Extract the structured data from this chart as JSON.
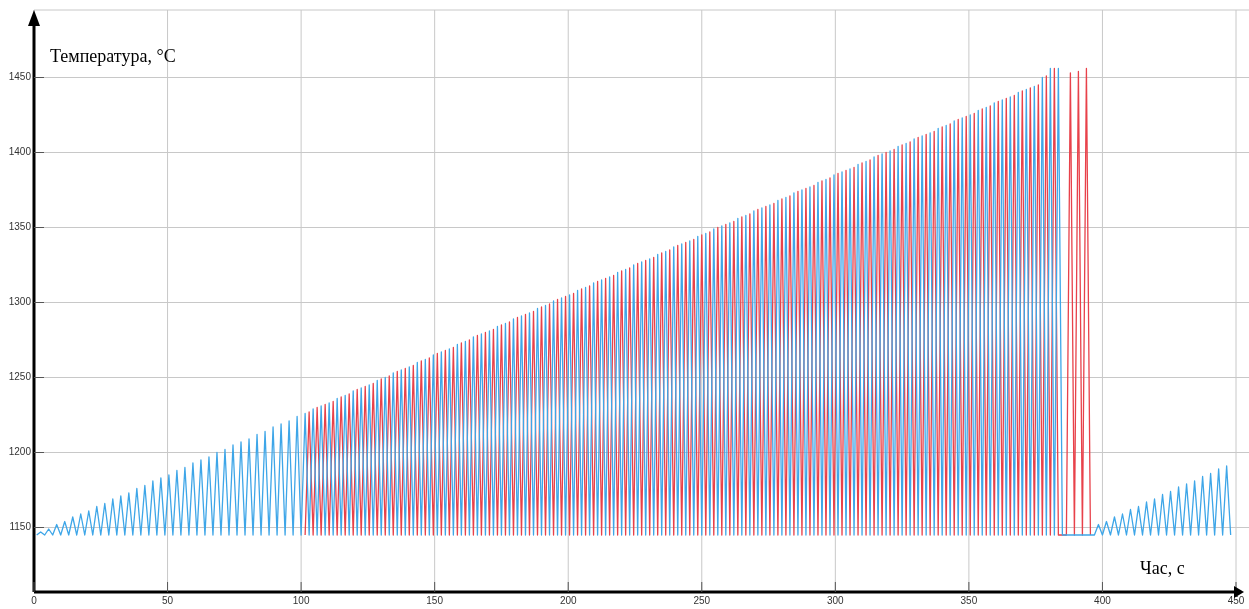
{
  "chart_data": {
    "type": "line",
    "xlabel": "Час, с",
    "ylabel": "Температура, °C",
    "xlim": [
      0,
      450
    ],
    "ylim": [
      1107,
      1495
    ],
    "xticks": [
      0,
      50,
      100,
      150,
      200,
      250,
      300,
      350,
      400,
      450
    ],
    "yticks": [
      1150,
      1200,
      1250,
      1300,
      1350,
      1400,
      1450
    ],
    "grid": true,
    "marker": "none",
    "line_style": "solid",
    "x": [
      1,
      2.5,
      4,
      5.5,
      7,
      8.5,
      10,
      11.5,
      13,
      14.5,
      16,
      17.5,
      19,
      20.5,
      22,
      23.5,
      25,
      26.5,
      28,
      29.5,
      31,
      32.5,
      34,
      35.5,
      37,
      38.5,
      40,
      41.5,
      43,
      44.5,
      46,
      47.5,
      49,
      50.5,
      52,
      53.5,
      55,
      56.5,
      58,
      59.5,
      61,
      62.5,
      64,
      65.5,
      67,
      68.5,
      70,
      71.5,
      73,
      74.5,
      76,
      77.5,
      79,
      80.5,
      82,
      83.5,
      85,
      86.5,
      88,
      89.5,
      91,
      92.5,
      94,
      95.5,
      97,
      98.5,
      100,
      101.5,
      103,
      104.5,
      106,
      107.5,
      109,
      110.5,
      112,
      113.5,
      115,
      116.5,
      118,
      119.5,
      121,
      122.5,
      124,
      125.5,
      127,
      128.5,
      130,
      131.5,
      133,
      134.5,
      136,
      137.5,
      139,
      140.5,
      142,
      143.5,
      145,
      146.5,
      148,
      149.5,
      151,
      152.5,
      154,
      155.5,
      157,
      158.5,
      160,
      161.5,
      163,
      164.5,
      166,
      167.5,
      169,
      170.5,
      172,
      173.5,
      175,
      176.5,
      178,
      179.5,
      181,
      182.5,
      184,
      185.5,
      187,
      188.5,
      190,
      191.5,
      193,
      194.5,
      196,
      197.5,
      199,
      200.5,
      202,
      203.5,
      205,
      206.5,
      208,
      209.5,
      211,
      212.5,
      214,
      215.5,
      217,
      218.5,
      220,
      221.5,
      223,
      224.5,
      226,
      227.5,
      229,
      230.5,
      232,
      233.5,
      235,
      236.5,
      238,
      239.5,
      241,
      242.5,
      244,
      245.5,
      247,
      248.5,
      250,
      251.5,
      253,
      254.5,
      256,
      257.5,
      259,
      260.5,
      262,
      263.5,
      265,
      266.5,
      268,
      269.5,
      271,
      272.5,
      274,
      275.5,
      277,
      278.5,
      280,
      281.5,
      283,
      284.5,
      286,
      287.5,
      289,
      290.5,
      292,
      293.5,
      295,
      296.5,
      298,
      299.5,
      301,
      302.5,
      304,
      305.5,
      307,
      308.5,
      310,
      311.5,
      313,
      314.5,
      316,
      317.5,
      319,
      320.5,
      322,
      323.5,
      325,
      326.5,
      328,
      329.5,
      331,
      332.5,
      334,
      335.5,
      337,
      338.5,
      340,
      341.5,
      343,
      344.5,
      346,
      347.5,
      349,
      350.5,
      352,
      353.5,
      355,
      356.5,
      358,
      359.5,
      361,
      362.5,
      364,
      365.5,
      367,
      368.5,
      370,
      371.5,
      373,
      374.5,
      376,
      377.5,
      379,
      380.5,
      382,
      383.5,
      385,
      386.5,
      388,
      389.5,
      391,
      392.5,
      394,
      395.5,
      397,
      398.5,
      400,
      401.5,
      403,
      404.5,
      406,
      407.5,
      409,
      410.5,
      412,
      413.5,
      415,
      416.5,
      418,
      419.5,
      421,
      422.5,
      424,
      425.5,
      427,
      428.5,
      430,
      431.5,
      433,
      434.5,
      436,
      437.5,
      439,
      440.5,
      442,
      443.5,
      445,
      446.5,
      448
    ],
    "series": [
      {
        "color": "#e8414a",
        "values": [
          null,
          null,
          null,
          null,
          null,
          null,
          null,
          null,
          null,
          null,
          null,
          null,
          null,
          null,
          null,
          null,
          null,
          null,
          null,
          null,
          null,
          null,
          null,
          null,
          null,
          null,
          null,
          null,
          null,
          null,
          null,
          null,
          null,
          null,
          null,
          null,
          null,
          null,
          null,
          null,
          null,
          null,
          null,
          null,
          null,
          null,
          null,
          null,
          null,
          null,
          null,
          null,
          null,
          null,
          null,
          null,
          null,
          null,
          null,
          null,
          null,
          null,
          null,
          null,
          null,
          null,
          null,
          1145,
          1227,
          1145,
          1230,
          1145,
          1232,
          1145,
          1234,
          1145,
          1237,
          1145,
          1239,
          1145,
          1242,
          1145,
          1244,
          1145,
          1246,
          1145,
          1249,
          1145,
          1251,
          1145,
          1254,
          1145,
          1256,
          1145,
          1258,
          1145,
          1261,
          1145,
          1263,
          1145,
          1266,
          1145,
          1268,
          1145,
          1270,
          1145,
          1273,
          1145,
          1275,
          1145,
          1278,
          1145,
          1280,
          1145,
          1282,
          1145,
          1285,
          1145,
          1287,
          1145,
          1290,
          1145,
          1292,
          1145,
          1294,
          1145,
          1297,
          1145,
          1299,
          1145,
          1302,
          1145,
          1304,
          1145,
          1306,
          1145,
          1309,
          1145,
          1311,
          1145,
          1314,
          1145,
          1316,
          1145,
          1318,
          1145,
          1321,
          1145,
          1323,
          1145,
          1326,
          1145,
          1328,
          1145,
          1330,
          1145,
          1333,
          1145,
          1335,
          1145,
          1338,
          1145,
          1340,
          1145,
          1342,
          1145,
          1345,
          1145,
          1347,
          1145,
          1350,
          1145,
          1352,
          1145,
          1354,
          1145,
          1357,
          1145,
          1359,
          1145,
          1362,
          1145,
          1364,
          1145,
          1366,
          1145,
          1369,
          1145,
          1371,
          1145,
          1374,
          1145,
          1376,
          1145,
          1378,
          1145,
          1381,
          1145,
          1383,
          1145,
          1386,
          1145,
          1388,
          1145,
          1390,
          1145,
          1393,
          1145,
          1395,
          1145,
          1398,
          1145,
          1400,
          1145,
          1402,
          1145,
          1405,
          1145,
          1407,
          1145,
          1410,
          1145,
          1412,
          1145,
          1414,
          1145,
          1417,
          1145,
          1419,
          1145,
          1422,
          1145,
          1424,
          1145,
          1426,
          1145,
          1429,
          1145,
          1431,
          1145,
          1434,
          1145,
          1436,
          1145,
          1438,
          1145,
          1441,
          1145,
          1443,
          1145,
          1445,
          1145,
          1451,
          1145,
          1456,
          1145,
          1145,
          1145,
          1453,
          1145,
          1454,
          1145,
          1456,
          1145,
          null,
          null,
          null,
          null,
          null,
          null,
          null,
          null,
          null,
          null,
          null,
          null,
          null,
          null,
          null,
          null,
          null,
          null,
          null,
          null,
          null,
          null,
          null,
          null,
          null,
          null,
          null,
          null,
          null,
          null,
          null,
          null,
          null,
          null,
          null
        ]
      },
      {
        "color": "#3ea6e8",
        "values": [
          1145,
          1147,
          1145,
          1149,
          1145,
          1152,
          1145,
          1154,
          1145,
          1157,
          1145,
          1159,
          1145,
          1161,
          1145,
          1164,
          1145,
          1166,
          1145,
          1169,
          1145,
          1171,
          1145,
          1173,
          1145,
          1176,
          1145,
          1178,
          1145,
          1181,
          1145,
          1183,
          1145,
          1185,
          1145,
          1188,
          1145,
          1190,
          1145,
          1193,
          1145,
          1195,
          1145,
          1197,
          1145,
          1200,
          1145,
          1202,
          1145,
          1205,
          1145,
          1207,
          1145,
          1209,
          1145,
          1212,
          1145,
          1214,
          1145,
          1217,
          1145,
          1219,
          1145,
          1221,
          1145,
          1224,
          1145,
          1226,
          1145,
          1229,
          1145,
          1231,
          1145,
          1233,
          1145,
          1236,
          1145,
          1238,
          1145,
          1241,
          1145,
          1243,
          1145,
          1245,
          1145,
          1248,
          1145,
          1250,
          1145,
          1253,
          1145,
          1255,
          1145,
          1257,
          1145,
          1260,
          1145,
          1262,
          1145,
          1265,
          1145,
          1267,
          1145,
          1269,
          1145,
          1272,
          1145,
          1274,
          1145,
          1277,
          1145,
          1279,
          1145,
          1281,
          1145,
          1284,
          1145,
          1286,
          1145,
          1289,
          1145,
          1291,
          1145,
          1293,
          1145,
          1296,
          1145,
          1298,
          1145,
          1301,
          1145,
          1303,
          1145,
          1305,
          1145,
          1308,
          1145,
          1310,
          1145,
          1313,
          1145,
          1315,
          1145,
          1317,
          1145,
          1320,
          1145,
          1322,
          1145,
          1325,
          1145,
          1327,
          1145,
          1329,
          1145,
          1332,
          1145,
          1334,
          1145,
          1337,
          1145,
          1339,
          1145,
          1341,
          1145,
          1344,
          1145,
          1346,
          1145,
          1349,
          1145,
          1351,
          1145,
          1353,
          1145,
          1356,
          1145,
          1358,
          1145,
          1361,
          1145,
          1363,
          1145,
          1365,
          1145,
          1368,
          1145,
          1370,
          1145,
          1373,
          1145,
          1375,
          1145,
          1377,
          1145,
          1380,
          1145,
          1382,
          1145,
          1385,
          1145,
          1387,
          1145,
          1389,
          1145,
          1392,
          1145,
          1394,
          1145,
          1397,
          1145,
          1399,
          1145,
          1401,
          1145,
          1404,
          1145,
          1406,
          1145,
          1409,
          1145,
          1411,
          1145,
          1413,
          1145,
          1416,
          1145,
          1418,
          1145,
          1421,
          1145,
          1423,
          1145,
          1425,
          1145,
          1428,
          1145,
          1430,
          1145,
          1433,
          1145,
          1435,
          1145,
          1437,
          1145,
          1440,
          1145,
          1442,
          1145,
          1444,
          1145,
          1450,
          1145,
          1456,
          1145,
          1456,
          1145,
          1145,
          1145,
          1145,
          1145,
          1145,
          1145,
          1145,
          1145,
          1152,
          1145,
          1154,
          1145,
          1157,
          1145,
          1159,
          1145,
          1162,
          1145,
          1164,
          1145,
          1167,
          1145,
          1169,
          1145,
          1172,
          1145,
          1174,
          1145,
          1177,
          1145,
          1179,
          1145,
          1181,
          1145,
          1184,
          1145,
          1186,
          1145,
          1189,
          1145,
          1191,
          1145
        ]
      }
    ]
  }
}
